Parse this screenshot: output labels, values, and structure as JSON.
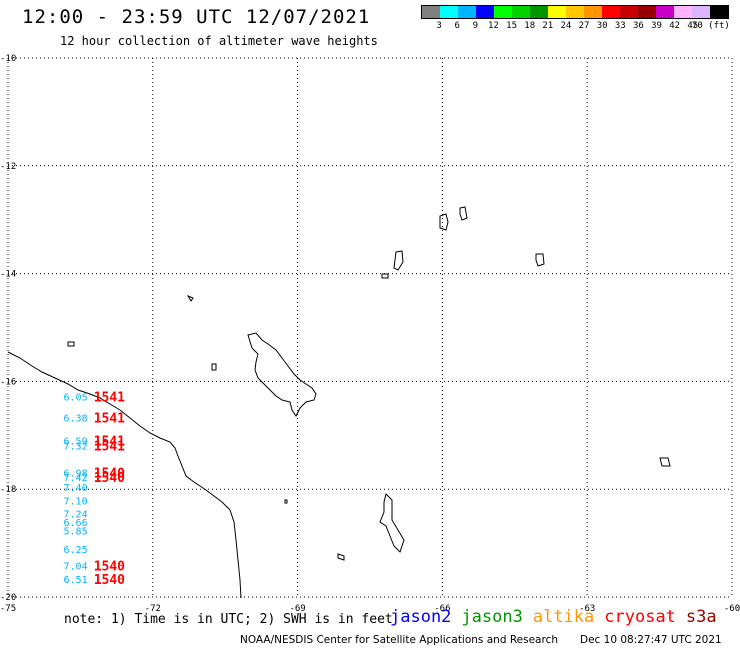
{
  "header": {
    "title": "12:00 - 23:59 UTC 12/07/2021",
    "subtitle": "12 hour collection of altimeter wave heights"
  },
  "legend": {
    "colors": [
      "#808080",
      "#00ffff",
      "#00b4ff",
      "#0000ff",
      "#00ff00",
      "#00d200",
      "#009600",
      "#ffff00",
      "#ffc800",
      "#ff9600",
      "#ff0000",
      "#c80000",
      "#960000",
      "#c800c8",
      "#ffb4ff",
      "#dcb4ff",
      "#000000"
    ],
    "labels": [
      "3",
      "6",
      "9",
      "12",
      "15",
      "18",
      "21",
      "24",
      "27",
      "30",
      "33",
      "36",
      "39",
      "42",
      "45",
      "70 (ft)"
    ],
    "unit": "(ft)"
  },
  "axes": {
    "lat_labels": [
      "-10",
      "-12",
      "-14",
      "-16",
      "-18",
      "-20"
    ],
    "lon_labels": [
      "-75",
      "-72",
      "-69",
      "-66",
      "-63",
      "-60"
    ]
  },
  "observations": {
    "swh_color": "#00b4ff",
    "time_color": "#ff0000",
    "swh": [
      {
        "value": "6.05",
        "lat": -16.28,
        "lon": -73.6
      },
      {
        "value": "6.38",
        "lat": -16.67,
        "lon": -73.6
      },
      {
        "value": "6.59",
        "lat": -17.1,
        "lon": -73.6
      },
      {
        "value": "7.32",
        "lat": -17.19,
        "lon": -73.6
      },
      {
        "value": "6.98",
        "lat": -17.69,
        "lon": -73.6
      },
      {
        "value": "7.42",
        "lat": -17.77,
        "lon": -73.6
      },
      {
        "value": "7.40",
        "lat": -17.96,
        "lon": -73.6
      },
      {
        "value": "7.10",
        "lat": -18.21,
        "lon": -73.6
      },
      {
        "value": "7.24",
        "lat": -18.45,
        "lon": -73.6
      },
      {
        "value": "6.66",
        "lat": -18.61,
        "lon": -73.6
      },
      {
        "value": "5.85",
        "lat": -18.77,
        "lon": -73.6
      },
      {
        "value": "6.25",
        "lat": -19.11,
        "lon": -73.6
      },
      {
        "value": "7.04",
        "lat": -19.42,
        "lon": -73.6
      },
      {
        "value": "6.51",
        "lat": -19.67,
        "lon": -73.6
      }
    ],
    "times": [
      {
        "value": "1541",
        "lat": -16.28,
        "lon": -72.9
      },
      {
        "value": "1541",
        "lat": -16.67,
        "lon": -72.9
      },
      {
        "value": "1541",
        "lat": -17.1,
        "lon": -72.9
      },
      {
        "value": "1541",
        "lat": -17.19,
        "lon": -72.9
      },
      {
        "value": "1540",
        "lat": -17.69,
        "lon": -72.9
      },
      {
        "value": "1540",
        "lat": -17.77,
        "lon": -72.9
      },
      {
        "value": "1540",
        "lat": -19.42,
        "lon": -72.9
      },
      {
        "value": "1540",
        "lat": -19.67,
        "lon": -72.9
      }
    ]
  },
  "footer": {
    "note": "note: 1) Time is in UTC; 2) SWH is in feet",
    "satellites": [
      {
        "name": "jason2",
        "color": "#0000ff"
      },
      {
        "name": "jason3",
        "color": "#009600"
      },
      {
        "name": "altika",
        "color": "#ff9600"
      },
      {
        "name": "cryosat",
        "color": "#ff0000"
      },
      {
        "name": "s3a",
        "color": "#960000"
      }
    ],
    "credit": "NOAA/NESDIS Center for Satellite Applications and Research",
    "timestamp": "Dec 10 08:27:47 UTC 2021"
  }
}
